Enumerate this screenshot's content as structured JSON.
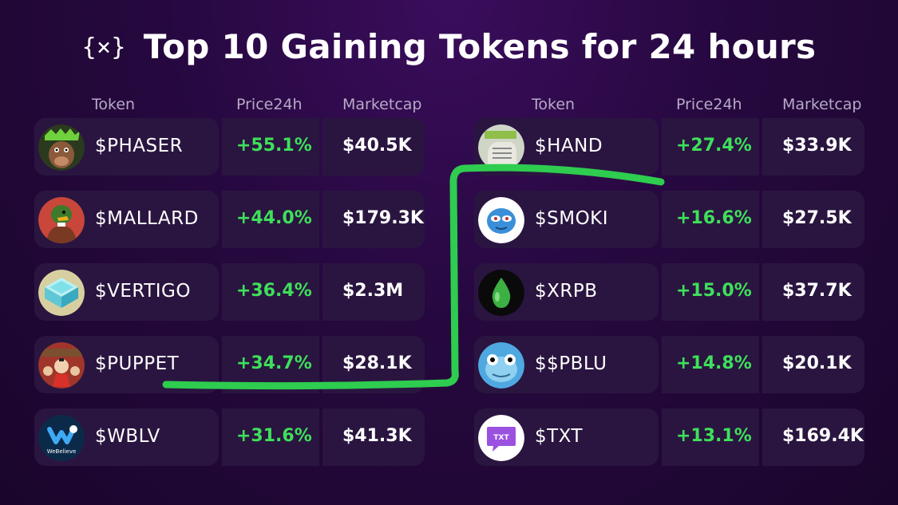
{
  "title": {
    "text": "Top 10 Gaining Tokens for 24 hours",
    "logo": "{×}"
  },
  "headers": {
    "token": "Token",
    "price": "Price24h",
    "mcap": "Marketcap"
  },
  "left": [
    {
      "token": "$PHASER",
      "price": "+55.1%",
      "mcap": "$40.5K",
      "icon": "bull-avatar-icon"
    },
    {
      "token": "$MALLARD",
      "price": "+44.0%",
      "mcap": "$179.3K",
      "icon": "duck-avatar-icon"
    },
    {
      "token": "$VERTIGO",
      "price": "+36.4%",
      "mcap": "$2.3M",
      "icon": "cube-avatar-icon"
    },
    {
      "token": "$PUPPET",
      "price": "+34.7%",
      "mcap": "$28.1K",
      "icon": "puppet-avatar-icon"
    },
    {
      "token": "$WBLV",
      "price": "+31.6%",
      "mcap": "$41.3K",
      "icon": "webelieve-logo-icon",
      "logo_text": "WeBelieve"
    }
  ],
  "right": [
    {
      "token": "$HAND",
      "price": "+27.4%",
      "mcap": "$33.9K",
      "icon": "hand-avatar-icon"
    },
    {
      "token": "$SMOKI",
      "price": "+16.6%",
      "mcap": "$27.5K",
      "icon": "smoki-avatar-icon"
    },
    {
      "token": "$XRPB",
      "price": "+15.0%",
      "mcap": "$37.7K",
      "icon": "droplet-icon"
    },
    {
      "token": "$$PBLU",
      "price": "+14.8%",
      "mcap": "$20.1K",
      "icon": "frog-avatar-icon"
    },
    {
      "token": "$TXT",
      "price": "+13.1%",
      "mcap": "$169.4K",
      "icon": "txt-chat-icon",
      "logo_text": "TXT"
    }
  ],
  "colors": {
    "gain": "#3ee05a",
    "annotation": "#2ecc4f",
    "row_bg": "#2a1540"
  }
}
